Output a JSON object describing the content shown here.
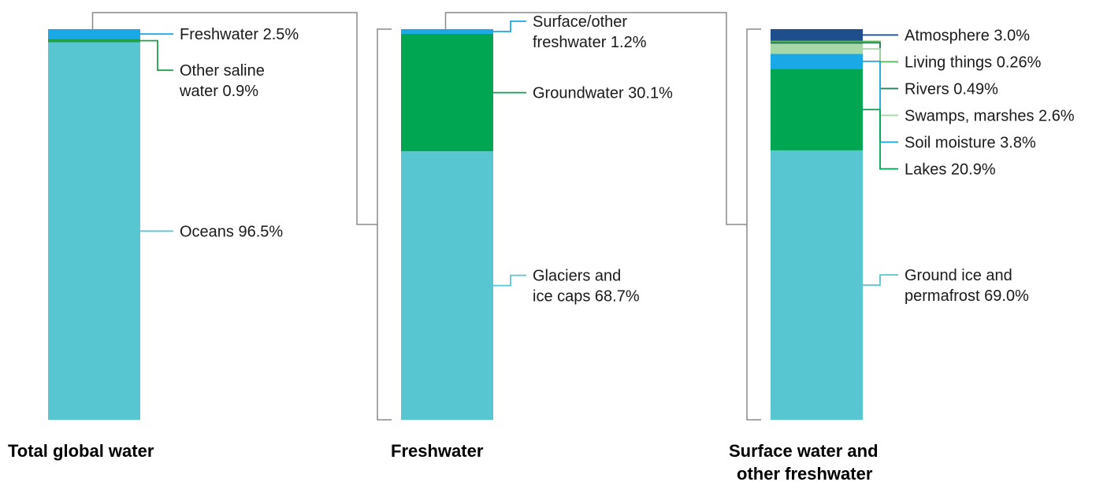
{
  "chart_data": [
    {
      "type": "stacked-bar",
      "title": "Total global water",
      "unit": "%",
      "segments": [
        {
          "name": "Freshwater",
          "lines": [
            "Freshwater 2.5%"
          ],
          "value": 2.5,
          "color": "#1aa9e6"
        },
        {
          "name": "Other saline water",
          "lines": [
            "Other saline",
            "water 0.9%"
          ],
          "value": 0.9,
          "color": "#1fa14a"
        },
        {
          "name": "Oceans",
          "lines": [
            "Oceans 96.5%"
          ],
          "value": 96.5,
          "color": "#58c6d1"
        }
      ]
    },
    {
      "type": "stacked-bar",
      "title": "Freshwater",
      "unit": "%",
      "segments": [
        {
          "name": "Surface/other freshwater",
          "lines": [
            "Surface/other",
            "freshwater 1.2%"
          ],
          "value": 1.2,
          "color": "#1aa9e6"
        },
        {
          "name": "Groundwater",
          "lines": [
            "Groundwater 30.1%"
          ],
          "value": 30.1,
          "color": "#00a651"
        },
        {
          "name": "Glaciers and ice caps",
          "lines": [
            "Glaciers and",
            "ice caps 68.7%"
          ],
          "value": 68.7,
          "color": "#58c6d1"
        }
      ]
    },
    {
      "type": "stacked-bar",
      "title": "Surface water and other freshwater",
      "title_lines": [
        "Surface water and",
        "other freshwater"
      ],
      "unit": "%",
      "segments": [
        {
          "name": "Atmosphere",
          "lines": [
            "Atmosphere 3.0%"
          ],
          "value": 3.0,
          "color": "#1f4e8c"
        },
        {
          "name": "Living things",
          "lines": [
            "Living things 0.26%"
          ],
          "value": 0.26,
          "color": "#5cb85c"
        },
        {
          "name": "Rivers",
          "lines": [
            "Rivers 0.49%"
          ],
          "value": 0.49,
          "color": "#2e7d5b"
        },
        {
          "name": "Swamps, marshes",
          "lines": [
            "Swamps, marshes 2.6%"
          ],
          "value": 2.6,
          "color": "#a8d8a8"
        },
        {
          "name": "Soil moisture",
          "lines": [
            "Soil moisture 3.8%"
          ],
          "value": 3.8,
          "color": "#1aa9e6"
        },
        {
          "name": "Lakes",
          "lines": [
            "Lakes 20.9%"
          ],
          "value": 20.9,
          "color": "#00a651"
        },
        {
          "name": "Ground ice and permafrost",
          "lines": [
            "Ground ice and",
            "permafrost 69.0%"
          ],
          "value": 69.0,
          "color": "#58c6d1"
        }
      ]
    }
  ],
  "colors": {
    "connector": "#8a8a8a",
    "text": "#1a1a1a"
  }
}
